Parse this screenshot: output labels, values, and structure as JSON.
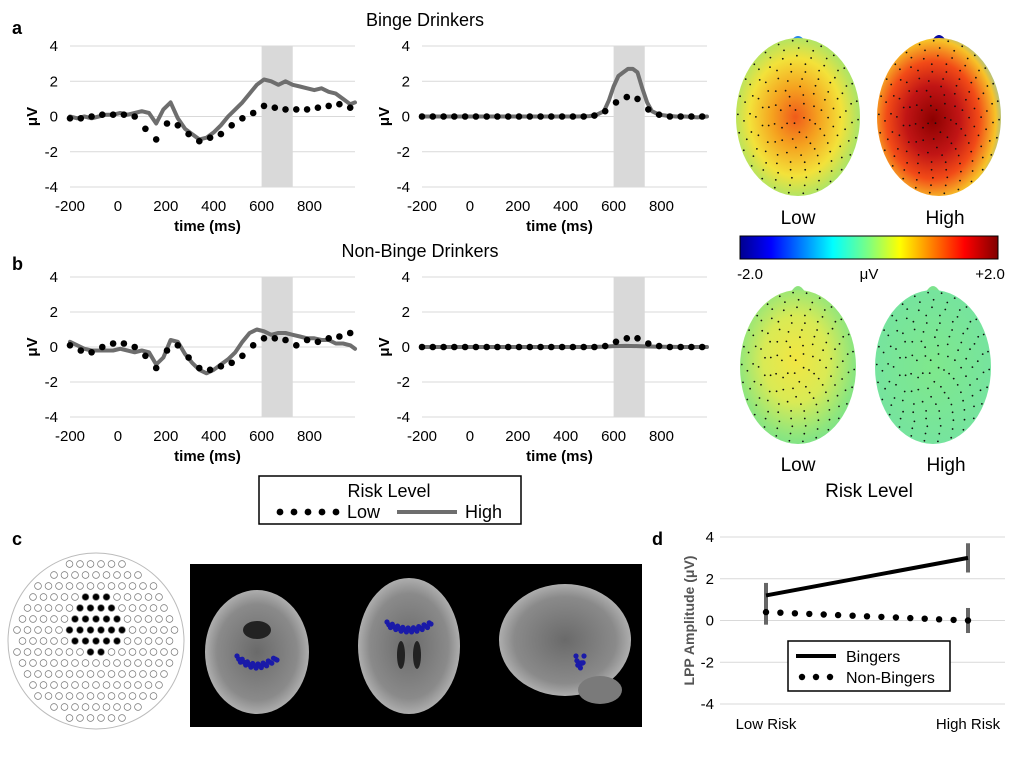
{
  "panel_labels": [
    "a",
    "b",
    "c",
    "d"
  ],
  "legend": {
    "title": "Risk Level",
    "low": "Low",
    "high": "High"
  },
  "colorbar": {
    "min_label": "-2.0",
    "unit": "μV",
    "max_label": "+2.0"
  },
  "topo": {
    "low_label": "Low",
    "high_label": "High",
    "bottom_low_label": "Low",
    "bottom_high_label": "High",
    "axis_title": "Risk Level"
  },
  "colors": {
    "low": "#000000",
    "high": "#6e6e6e",
    "window": "#d9d9d9",
    "electrode_highlight": "#1a1aa8"
  },
  "chart_data": [
    {
      "id": "binge-left",
      "type": "line",
      "title": "Binge Drinkers",
      "xlabel": "time (ms)",
      "ylabel": "μV",
      "xlim": [
        -200,
        990
      ],
      "ylim": [
        -4,
        4
      ],
      "xticks": [
        -200,
        0,
        200,
        400,
        600,
        800
      ],
      "yticks": [
        -4,
        -2,
        0,
        2,
        4
      ],
      "shaded_window": [
        600,
        730
      ],
      "series": [
        {
          "name": "Low",
          "style": "dotted",
          "x": [
            -200,
            -155,
            -110,
            -65,
            -20,
            25,
            70,
            115,
            160,
            205,
            250,
            295,
            340,
            385,
            430,
            475,
            520,
            565,
            610,
            655,
            700,
            745,
            790,
            835,
            880,
            925,
            970
          ],
          "y": [
            -0.1,
            -0.1,
            0.0,
            0.1,
            0.1,
            0.1,
            0.0,
            -0.7,
            -1.3,
            -0.4,
            -0.5,
            -1.0,
            -1.4,
            -1.2,
            -1.0,
            -0.5,
            -0.1,
            0.2,
            0.6,
            0.5,
            0.4,
            0.4,
            0.4,
            0.5,
            0.6,
            0.7,
            0.5
          ]
        },
        {
          "name": "High",
          "style": "solid",
          "x": [
            -200,
            -170,
            -140,
            -110,
            -80,
            -50,
            -20,
            10,
            40,
            70,
            100,
            130,
            160,
            190,
            220,
            250,
            280,
            310,
            340,
            370,
            400,
            430,
            460,
            490,
            520,
            550,
            580,
            610,
            640,
            670,
            700,
            730,
            760,
            790,
            820,
            850,
            880,
            910,
            940,
            970,
            990
          ],
          "y": [
            0.0,
            -0.1,
            0.0,
            -0.1,
            0.0,
            0.1,
            0.1,
            0.2,
            0.1,
            0.2,
            0.3,
            0.2,
            -0.4,
            0.4,
            0.8,
            -0.1,
            -0.7,
            -1.0,
            -1.3,
            -1.2,
            -0.9,
            -0.5,
            0.0,
            0.4,
            0.8,
            1.3,
            1.8,
            2.1,
            2.0,
            1.8,
            2.0,
            1.8,
            1.7,
            1.6,
            1.5,
            1.6,
            1.4,
            1.3,
            1.0,
            0.7,
            0.8
          ]
        }
      ]
    },
    {
      "id": "binge-right",
      "type": "line",
      "xlabel": "time (ms)",
      "ylabel": "μV",
      "xlim": [
        -200,
        990
      ],
      "ylim": [
        -4,
        4
      ],
      "xticks": [
        -200,
        0,
        200,
        400,
        600,
        800
      ],
      "yticks": [
        -4,
        -2,
        0,
        2,
        4
      ],
      "shaded_window": [
        600,
        730
      ],
      "series": [
        {
          "name": "Low",
          "style": "dotted",
          "x": [
            -200,
            -155,
            -110,
            -65,
            -20,
            25,
            70,
            115,
            160,
            205,
            250,
            295,
            340,
            385,
            430,
            475,
            520,
            565,
            610,
            655,
            700,
            745,
            790,
            835,
            880,
            925,
            970
          ],
          "y": [
            0,
            0,
            0,
            0,
            0,
            0,
            0,
            0,
            0,
            0,
            0,
            0,
            0,
            0,
            0,
            0,
            0.05,
            0.3,
            0.8,
            1.1,
            1.0,
            0.4,
            0.1,
            0,
            0,
            0,
            0
          ]
        },
        {
          "name": "High",
          "style": "solid",
          "x": [
            -200,
            -100,
            0,
            100,
            200,
            300,
            400,
            450,
            500,
            530,
            560,
            580,
            600,
            620,
            640,
            660,
            680,
            700,
            720,
            740,
            760,
            790,
            820,
            860,
            900,
            950,
            990
          ],
          "y": [
            0,
            0,
            0,
            0,
            0,
            0,
            0,
            0,
            0.02,
            0.1,
            0.3,
            0.9,
            1.7,
            2.3,
            2.5,
            2.7,
            2.7,
            2.5,
            1.6,
            0.8,
            0.3,
            0.1,
            0.05,
            0.0,
            0.0,
            -0.05,
            0.0
          ]
        }
      ]
    },
    {
      "id": "nonbinge-left",
      "type": "line",
      "title": "Non-Binge Drinkers",
      "xlabel": "time (ms)",
      "ylabel": "μV",
      "xlim": [
        -200,
        990
      ],
      "ylim": [
        -4,
        4
      ],
      "xticks": [
        -200,
        0,
        200,
        400,
        600,
        800
      ],
      "yticks": [
        -4,
        -2,
        0,
        2,
        4
      ],
      "shaded_window": [
        600,
        730
      ],
      "series": [
        {
          "name": "Low",
          "style": "dotted",
          "x": [
            -200,
            -155,
            -110,
            -65,
            -20,
            25,
            70,
            115,
            160,
            205,
            250,
            295,
            340,
            385,
            430,
            475,
            520,
            565,
            610,
            655,
            700,
            745,
            790,
            835,
            880,
            925,
            970
          ],
          "y": [
            0.1,
            -0.2,
            -0.3,
            0.0,
            0.2,
            0.2,
            0.0,
            -0.5,
            -1.2,
            -0.2,
            0.1,
            -0.6,
            -1.2,
            -1.3,
            -1.1,
            -0.9,
            -0.5,
            0.1,
            0.5,
            0.5,
            0.4,
            0.1,
            0.4,
            0.3,
            0.5,
            0.6,
            0.8
          ]
        },
        {
          "name": "High",
          "style": "solid",
          "x": [
            -200,
            -170,
            -140,
            -110,
            -80,
            -50,
            -20,
            10,
            40,
            70,
            100,
            130,
            160,
            190,
            220,
            250,
            280,
            310,
            340,
            370,
            400,
            430,
            460,
            490,
            520,
            550,
            580,
            610,
            640,
            670,
            700,
            730,
            760,
            790,
            820,
            850,
            880,
            910,
            940,
            970,
            990
          ],
          "y": [
            0.3,
            0.1,
            -0.1,
            -0.2,
            -0.2,
            -0.2,
            -0.2,
            -0.1,
            -0.2,
            -0.3,
            -0.2,
            -0.3,
            -1.0,
            -0.6,
            0.4,
            0.3,
            -0.4,
            -0.9,
            -1.3,
            -1.5,
            -1.3,
            -1.0,
            -0.7,
            -0.3,
            0.3,
            0.8,
            1.0,
            0.9,
            0.7,
            0.8,
            0.8,
            0.7,
            0.6,
            0.5,
            0.5,
            0.4,
            0.4,
            0.2,
            0.2,
            0.1,
            -0.1
          ]
        }
      ]
    },
    {
      "id": "nonbinge-right",
      "type": "line",
      "xlabel": "time (ms)",
      "ylabel": "μV",
      "xlim": [
        -200,
        990
      ],
      "ylim": [
        -4,
        4
      ],
      "xticks": [
        -200,
        0,
        200,
        400,
        600,
        800
      ],
      "yticks": [
        -4,
        -2,
        0,
        2,
        4
      ],
      "shaded_window": [
        600,
        730
      ],
      "series": [
        {
          "name": "Low",
          "style": "dotted",
          "x": [
            -200,
            -155,
            -110,
            -65,
            -20,
            25,
            70,
            115,
            160,
            205,
            250,
            295,
            340,
            385,
            430,
            475,
            520,
            565,
            610,
            655,
            700,
            745,
            790,
            835,
            880,
            925,
            970
          ],
          "y": [
            0,
            0,
            0,
            0,
            0,
            0,
            0,
            0,
            0,
            0,
            0,
            0,
            0,
            0,
            0,
            0,
            0,
            0.05,
            0.3,
            0.5,
            0.5,
            0.2,
            0.05,
            0,
            0,
            0,
            0
          ]
        },
        {
          "name": "High",
          "style": "solid",
          "x": [
            -200,
            0,
            200,
            400,
            500,
            560,
            600,
            650,
            700,
            750,
            800,
            900,
            990
          ],
          "y": [
            0,
            0,
            0,
            0,
            0,
            0.02,
            0.05,
            0.06,
            0.05,
            0.03,
            0.01,
            0,
            0
          ]
        }
      ]
    },
    {
      "id": "lpp-amplitude",
      "type": "line",
      "ylabel": "LPP Amplitude (μV)",
      "categories": [
        "Low Risk",
        "High Risk"
      ],
      "ylim": [
        -4,
        4
      ],
      "yticks": [
        -4,
        -2,
        0,
        2,
        4
      ],
      "series": [
        {
          "name": "Bingers",
          "style": "solid",
          "values": [
            1.2,
            3.0
          ],
          "error": [
            0.6,
            0.7
          ]
        },
        {
          "name": "Non-Bingers",
          "style": "dotted",
          "values": [
            0.4,
            0.0
          ],
          "error": [
            0.6,
            0.6
          ]
        }
      ]
    }
  ]
}
